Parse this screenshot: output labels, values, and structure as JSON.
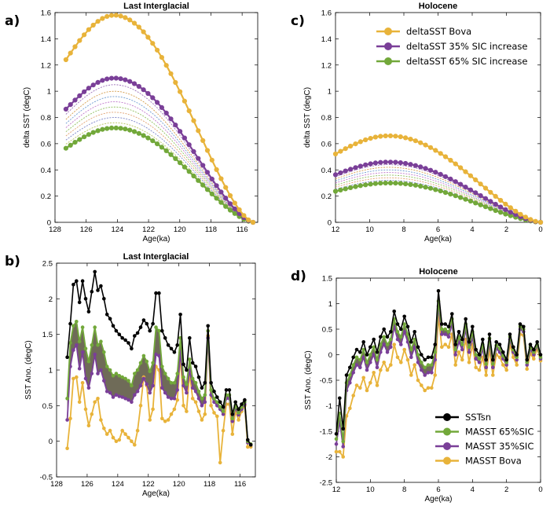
{
  "panel_labels": [
    "a)",
    "c)",
    "b)",
    "d)"
  ],
  "colors": {
    "bova": "#e8b33a",
    "sic35": "#7a3f98",
    "sic65": "#72a83a",
    "sstsn": "#000000",
    "band": "#6f6b58"
  },
  "chart_data": [
    {
      "id": "a",
      "type": "line",
      "title": "Last Interglacial",
      "xlabel": "Age(ka)",
      "ylabel": "delta SST (degC)",
      "xlim": [
        128,
        115
      ],
      "ylim": [
        0,
        1.6
      ],
      "xticks": [
        128,
        126,
        124,
        122,
        120,
        118,
        116
      ],
      "yticks": [
        0,
        0.2,
        0.4,
        0.6,
        0.8,
        1,
        1.2,
        1.4,
        1.6
      ],
      "xtick_labels": [
        "128",
        "126",
        "124",
        "122",
        "120",
        "118",
        "116"
      ],
      "ytick_labels": [
        "0",
        "0.2",
        "0.4",
        "0.6",
        "0.8",
        "1",
        "1.2",
        "1.4",
        "1.6"
      ],
      "curve": {
        "peak_x": 124.2,
        "end_x": 115.3,
        "start_x": 127.3,
        "start_frac": 0.785
      },
      "series": [
        {
          "name": "deltaSST Bova",
          "peak": 1.58,
          "color": "bova"
        },
        {
          "name": "deltaSST 35% SIC increase",
          "peak": 1.1,
          "color": "sic35"
        },
        {
          "name": "deltaSST 65% SIC increase",
          "peak": 0.72,
          "color": "sic65"
        }
      ],
      "intermediate_peaks": [
        1.05,
        1.0,
        0.96,
        0.92,
        0.88,
        0.84,
        0.8,
        0.76
      ]
    },
    {
      "id": "c",
      "type": "line",
      "title": "Holocene",
      "xlabel": "Age(ka)",
      "ylabel": "delta SST (degC)",
      "xlim": [
        12,
        0
      ],
      "ylim": [
        0,
        1.6
      ],
      "xticks": [
        12,
        10,
        8,
        6,
        4,
        2,
        0
      ],
      "yticks": [
        0,
        0.2,
        0.4,
        0.6,
        0.8,
        1,
        1.2,
        1.4,
        1.6
      ],
      "xtick_labels": [
        "12",
        "10",
        "8",
        "6",
        "4",
        "2",
        "0"
      ],
      "ytick_labels": [
        "0",
        "0.2",
        "0.4",
        "0.6",
        "0.8",
        "1",
        "1.2",
        "1.4",
        "1.6"
      ],
      "curve": {
        "peak_x": 8.9,
        "end_x": 0,
        "start_x": 12,
        "start_frac": 0.79
      },
      "series": [
        {
          "name": "deltaSST Bova",
          "peak": 0.66,
          "color": "bova"
        },
        {
          "name": "deltaSST 35% SIC increase",
          "peak": 0.46,
          "color": "sic35"
        },
        {
          "name": "deltaSST 65% SIC increase",
          "peak": 0.3,
          "color": "sic65"
        }
      ],
      "intermediate_peaks": [
        0.44,
        0.42,
        0.4,
        0.38,
        0.36,
        0.34,
        0.32
      ],
      "legend": [
        "deltaSST Bova",
        "deltaSST 35% SIC increase",
        "deltaSST 65% SIC increase"
      ]
    },
    {
      "id": "b",
      "type": "line",
      "title": "Last Interglacial",
      "xlabel": "Age(ka)",
      "ylabel": "SST Ano. (degC)",
      "xlim": [
        128,
        115
      ],
      "ylim": [
        -0.5,
        2.5
      ],
      "xticks": [
        128,
        126,
        124,
        122,
        120,
        118,
        116
      ],
      "yticks": [
        -0.5,
        0,
        0.5,
        1,
        1.5,
        2,
        2.5
      ],
      "xtick_labels": [
        "128",
        "126",
        "124",
        "122",
        "120",
        "118",
        "116"
      ],
      "ytick_labels": [
        "-0.5",
        "0",
        "0.5",
        "1",
        "1.5",
        "2",
        "2.5"
      ],
      "x": [
        127.3,
        127.1,
        126.9,
        126.7,
        126.5,
        126.3,
        126.1,
        125.9,
        125.7,
        125.5,
        125.3,
        125.1,
        124.9,
        124.7,
        124.5,
        124.3,
        124.1,
        123.9,
        123.7,
        123.5,
        123.3,
        123.1,
        122.9,
        122.7,
        122.5,
        122.3,
        122.1,
        121.9,
        121.7,
        121.5,
        121.3,
        121.1,
        120.9,
        120.7,
        120.5,
        120.3,
        120.1,
        119.9,
        119.7,
        119.5,
        119.3,
        119.1,
        118.9,
        118.7,
        118.5,
        118.3,
        118.1,
        117.9,
        117.7,
        117.5,
        117.3,
        117.1,
        116.9,
        116.7,
        116.5,
        116.3,
        116.1,
        115.9,
        115.7,
        115.5,
        115.3
      ],
      "series": [
        {
          "name": "SSTsn",
          "color": "sstsn",
          "values": [
            1.18,
            1.65,
            2.2,
            2.25,
            1.95,
            2.25,
            2.0,
            1.82,
            2.1,
            2.38,
            2.12,
            2.18,
            2.0,
            1.78,
            1.72,
            1.62,
            1.55,
            1.5,
            1.45,
            1.42,
            1.38,
            1.3,
            1.48,
            1.52,
            1.6,
            1.7,
            1.65,
            1.55,
            1.65,
            2.08,
            2.08,
            1.55,
            1.45,
            1.35,
            1.3,
            1.25,
            1.35,
            1.78,
            1.08,
            1.0,
            1.45,
            1.1,
            1.05,
            0.9,
            0.75,
            0.82,
            1.62,
            0.82,
            0.7,
            0.62,
            0.55,
            0.48,
            0.72,
            0.72,
            0.38,
            0.55,
            0.45,
            0.52,
            0.58,
            0.02,
            -0.05
          ]
        },
        {
          "name": "MASST 65%SIC",
          "color": "sic65",
          "values": [
            0.6,
            1.38,
            1.62,
            1.68,
            1.4,
            1.6,
            1.3,
            1.12,
            1.35,
            1.6,
            1.35,
            1.4,
            1.25,
            1.05,
            1.0,
            0.92,
            0.95,
            0.92,
            0.9,
            0.88,
            0.85,
            0.78,
            0.95,
            1.0,
            1.1,
            1.2,
            1.12,
            0.98,
            1.1,
            1.6,
            1.55,
            1.05,
            0.95,
            0.88,
            0.82,
            0.82,
            0.95,
            1.45,
            0.9,
            0.8,
            1.15,
            0.88,
            0.82,
            0.7,
            0.6,
            0.65,
            1.55,
            0.72,
            0.6,
            0.55,
            0.48,
            0.42,
            0.65,
            0.65,
            0.32,
            0.5,
            0.4,
            0.48,
            0.55,
            0.0,
            -0.04
          ]
        },
        {
          "name": "MASST 35%SIC",
          "color": "sic35",
          "values": [
            0.3,
            1.05,
            1.28,
            1.35,
            1.02,
            1.25,
            0.88,
            0.75,
            0.95,
            1.22,
            0.95,
            1.0,
            0.85,
            0.7,
            0.68,
            0.62,
            0.65,
            0.63,
            0.62,
            0.6,
            0.58,
            0.55,
            0.65,
            0.7,
            0.78,
            0.88,
            0.8,
            0.68,
            0.78,
            1.22,
            1.2,
            0.75,
            0.68,
            0.62,
            0.6,
            0.6,
            0.72,
            1.25,
            0.78,
            0.68,
            1.0,
            0.75,
            0.7,
            0.6,
            0.5,
            0.55,
            1.45,
            0.65,
            0.55,
            0.5,
            0.45,
            0.38,
            0.6,
            0.6,
            0.28,
            0.47,
            0.37,
            0.45,
            0.52,
            -0.02,
            -0.05
          ]
        },
        {
          "name": "MASST Bova",
          "color": "bova",
          "values": [
            -0.1,
            0.32,
            0.88,
            0.9,
            0.55,
            0.82,
            0.45,
            0.22,
            0.38,
            0.55,
            0.6,
            0.3,
            0.18,
            0.1,
            0.15,
            0.05,
            0.0,
            0.02,
            0.15,
            0.1,
            0.05,
            0.0,
            -0.05,
            0.15,
            0.5,
            0.9,
            0.78,
            0.3,
            0.45,
            1.05,
            1.0,
            0.32,
            0.28,
            0.3,
            0.38,
            0.45,
            0.58,
            1.2,
            0.5,
            0.42,
            0.95,
            0.6,
            0.55,
            0.42,
            0.3,
            0.38,
            1.48,
            0.5,
            0.4,
            0.35,
            -0.3,
            0.15,
            0.52,
            0.52,
            0.1,
            0.42,
            0.3,
            0.42,
            0.5,
            -0.08,
            -0.08
          ]
        }
      ]
    },
    {
      "id": "d",
      "type": "line",
      "title": "Holocene",
      "xlabel": "Age(ka)",
      "ylabel": "SST Ano. (degC)",
      "xlim": [
        12,
        0
      ],
      "ylim": [
        -2.5,
        1.5
      ],
      "xticks": [
        12,
        10,
        8,
        6,
        4,
        2,
        0
      ],
      "yticks": [
        -2.5,
        -2,
        -1.5,
        -1,
        -0.5,
        0,
        0.5,
        1,
        1.5
      ],
      "xtick_labels": [
        "12",
        "10",
        "8",
        "6",
        "4",
        "2",
        "0"
      ],
      "ytick_labels": [
        "-2.5",
        "-2",
        "-1.5",
        "-1",
        "-0.5",
        "0",
        "0.5",
        "1",
        "1.5"
      ],
      "x": [
        12.0,
        11.8,
        11.6,
        11.4,
        11.2,
        11.0,
        10.8,
        10.6,
        10.4,
        10.2,
        10.0,
        9.8,
        9.6,
        9.4,
        9.2,
        9.0,
        8.8,
        8.6,
        8.4,
        8.2,
        8.0,
        7.8,
        7.6,
        7.4,
        7.2,
        7.0,
        6.8,
        6.6,
        6.4,
        6.2,
        6.0,
        5.8,
        5.6,
        5.4,
        5.2,
        5.0,
        4.8,
        4.6,
        4.4,
        4.2,
        4.0,
        3.8,
        3.6,
        3.4,
        3.2,
        3.0,
        2.8,
        2.6,
        2.4,
        2.2,
        2.0,
        1.8,
        1.6,
        1.4,
        1.2,
        1.0,
        0.8,
        0.6,
        0.4,
        0.2,
        0.0
      ],
      "series": [
        {
          "name": "SSTsn",
          "color": "sstsn",
          "values": [
            -1.55,
            -0.85,
            -1.45,
            -0.4,
            -0.25,
            -0.05,
            0.1,
            0.05,
            0.25,
            0.0,
            0.15,
            0.3,
            0.05,
            0.35,
            0.5,
            0.35,
            0.45,
            0.85,
            0.6,
            0.5,
            0.75,
            0.55,
            0.25,
            0.45,
            0.15,
            0.0,
            -0.1,
            -0.05,
            -0.05,
            0.2,
            1.25,
            0.6,
            0.6,
            0.55,
            0.8,
            0.2,
            0.45,
            0.3,
            0.7,
            0.25,
            0.55,
            0.1,
            0.0,
            0.3,
            -0.1,
            0.4,
            -0.1,
            0.25,
            0.2,
            0.05,
            -0.1,
            0.4,
            0.15,
            0.0,
            0.6,
            0.55,
            -0.1,
            0.2,
            0.1,
            0.25,
            0.0
          ]
        },
        {
          "name": "MASST 65%SIC",
          "color": "sic65",
          "values": [
            -1.65,
            -1.15,
            -1.7,
            -0.55,
            -0.4,
            -0.2,
            -0.05,
            -0.1,
            0.1,
            -0.15,
            0.0,
            0.15,
            -0.1,
            0.2,
            0.35,
            0.2,
            0.3,
            0.7,
            0.45,
            0.35,
            0.6,
            0.4,
            0.1,
            0.3,
            0.0,
            -0.15,
            -0.25,
            -0.2,
            -0.2,
            0.05,
            1.05,
            0.5,
            0.5,
            0.45,
            0.7,
            0.1,
            0.35,
            0.2,
            0.6,
            0.15,
            0.45,
            0.0,
            -0.08,
            0.2,
            -0.18,
            0.32,
            -0.18,
            0.18,
            0.12,
            -0.02,
            -0.15,
            0.35,
            0.1,
            -0.05,
            0.55,
            0.5,
            -0.15,
            0.15,
            0.05,
            0.2,
            -0.05
          ]
        },
        {
          "name": "MASST 35%SIC",
          "color": "sic35",
          "values": [
            -1.75,
            -1.3,
            -1.8,
            -0.7,
            -0.55,
            -0.35,
            -0.2,
            -0.25,
            -0.05,
            -0.3,
            -0.15,
            0.0,
            -0.25,
            0.05,
            0.2,
            0.05,
            0.15,
            0.55,
            0.3,
            0.2,
            0.45,
            0.25,
            -0.05,
            0.15,
            -0.15,
            -0.3,
            -0.4,
            -0.35,
            -0.35,
            -0.1,
            0.95,
            0.4,
            0.4,
            0.35,
            0.6,
            0.0,
            0.25,
            0.1,
            0.5,
            0.05,
            0.35,
            -0.08,
            -0.15,
            0.12,
            -0.25,
            0.25,
            -0.25,
            0.12,
            0.05,
            -0.08,
            -0.2,
            0.3,
            0.05,
            -0.1,
            0.5,
            0.45,
            -0.2,
            0.1,
            0.0,
            0.18,
            -0.08
          ]
        },
        {
          "name": "MASST Bova",
          "color": "bova",
          "values": [
            -1.9,
            -1.9,
            -2.0,
            -1.2,
            -1.05,
            -0.8,
            -0.6,
            -0.65,
            -0.45,
            -0.7,
            -0.55,
            -0.35,
            -0.6,
            -0.3,
            -0.15,
            -0.3,
            -0.2,
            0.2,
            -0.05,
            -0.15,
            0.1,
            -0.1,
            -0.4,
            -0.2,
            -0.5,
            -0.6,
            -0.7,
            -0.65,
            -0.65,
            -0.4,
            0.75,
            0.15,
            0.2,
            0.15,
            0.4,
            -0.2,
            0.05,
            -0.1,
            0.3,
            -0.15,
            0.2,
            -0.25,
            -0.3,
            -0.05,
            -0.4,
            0.1,
            -0.4,
            0.0,
            -0.05,
            -0.2,
            -0.3,
            0.2,
            -0.05,
            -0.2,
            0.4,
            0.38,
            -0.28,
            0.02,
            -0.08,
            0.12,
            -0.12
          ]
        }
      ],
      "legend": [
        "SSTsn",
        "MASST 65%SIC",
        "MASST 35%SIC",
        "MASST Bova"
      ]
    }
  ]
}
